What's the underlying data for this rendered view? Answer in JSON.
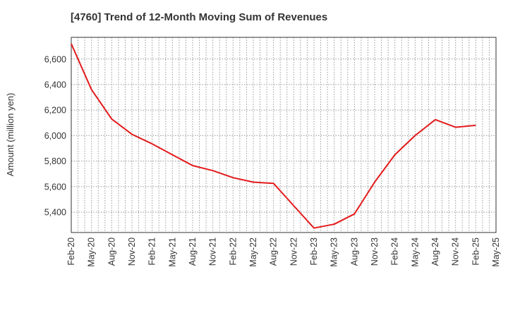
{
  "chart_data": {
    "type": "line",
    "title": "[4760]  Trend of 12-Month Moving Sum of Revenues",
    "xlabel": "",
    "ylabel": "Amount (million yen)",
    "ylim": [
      5240,
      6770
    ],
    "yticks": [
      5400,
      5600,
      5800,
      6000,
      6200,
      6400,
      6600
    ],
    "ytick_labels": [
      "5,400",
      "5,600",
      "5,800",
      "6,000",
      "6,200",
      "6,400",
      "6,600"
    ],
    "xtick_labels": [
      "Feb-20",
      "May-20",
      "Aug-20",
      "Nov-20",
      "Feb-21",
      "May-21",
      "Aug-21",
      "Nov-21",
      "Feb-22",
      "May-22",
      "Aug-22",
      "Nov-22",
      "Feb-23",
      "May-23",
      "Aug-23",
      "Nov-23",
      "Feb-24",
      "May-24",
      "Aug-24",
      "Nov-24",
      "Feb-25",
      "May-25"
    ],
    "grid": true,
    "series": [
      {
        "color": "#e31a1c",
        "x": [
          "Feb-20",
          "May-20",
          "Aug-20",
          "Nov-20",
          "Feb-21",
          "May-21",
          "Aug-21",
          "Nov-21",
          "Feb-22",
          "May-22",
          "Aug-22",
          "Nov-22",
          "Feb-23",
          "May-23",
          "Aug-23",
          "Nov-23",
          "Feb-24",
          "May-24",
          "Aug-24",
          "Nov-24",
          "Feb-25"
        ],
        "values": [
          6720,
          6360,
          6130,
          6010,
          5935,
          5850,
          5765,
          5725,
          5670,
          5635,
          5625,
          5450,
          5275,
          5305,
          5385,
          5635,
          5850,
          6000,
          6125,
          6065,
          6080
        ]
      }
    ]
  }
}
